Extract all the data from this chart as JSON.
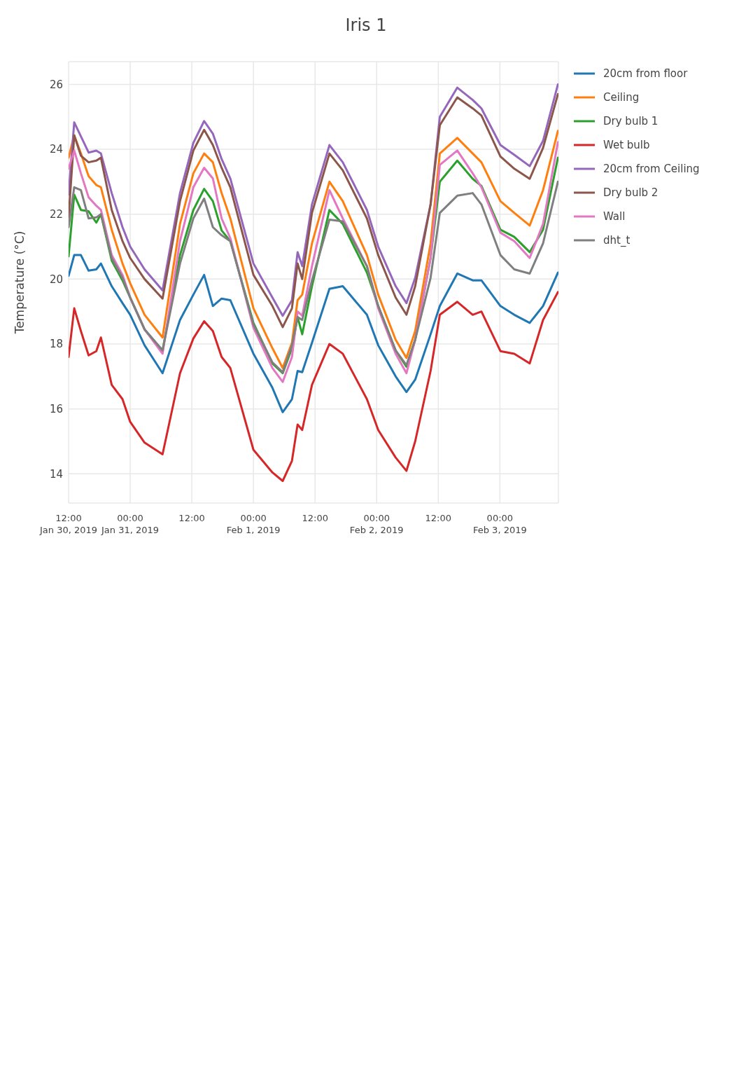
{
  "chart_data": {
    "type": "line",
    "title": "Iris 1",
    "ylabel": "Temperature (°C)",
    "x": [
      "2019-01-30T12:00",
      "2019-01-30T13:06",
      "2019-01-30T14:24",
      "2019-01-30T15:54",
      "2019-01-30T17:24",
      "2019-01-30T18:18",
      "2019-01-30T20:24",
      "2019-01-30T22:30",
      "2019-01-31T00:00",
      "2019-01-31T02:48",
      "2019-01-31T06:18",
      "2019-01-31T09:42",
      "2019-01-31T12:18",
      "2019-01-31T14:24",
      "2019-01-31T16:06",
      "2019-01-31T17:48",
      "2019-01-31T19:30",
      "2019-02-01T00:00",
      "2019-02-01T03:42",
      "2019-02-01T05:42",
      "2019-02-01T07:30",
      "2019-02-01T08:36",
      "2019-02-01T09:30",
      "2019-02-01T11:24",
      "2019-02-01T14:48",
      "2019-02-01T17:24",
      "2019-02-01T22:06",
      "2019-02-02T00:18",
      "2019-02-02T03:42",
      "2019-02-02T05:48",
      "2019-02-02T07:30",
      "2019-02-02T10:30",
      "2019-02-02T12:18",
      "2019-02-02T15:42",
      "2019-02-02T18:42",
      "2019-02-02T20:24",
      "2019-02-03T00:06",
      "2019-02-03T02:48",
      "2019-02-03T05:48",
      "2019-02-03T08:24",
      "2019-02-03T11:18"
    ],
    "series": [
      {
        "name": "20cm from floor",
        "color": "#1f77b4",
        "values": [
          20.1,
          20.74,
          20.74,
          20.26,
          20.3,
          20.48,
          19.78,
          19.26,
          18.9,
          17.96,
          17.1,
          18.74,
          19.52,
          20.13,
          19.17,
          19.4,
          19.35,
          17.7,
          16.65,
          15.9,
          16.3,
          17.17,
          17.13,
          18.04,
          19.7,
          19.78,
          18.9,
          17.96,
          17.0,
          16.52,
          16.9,
          18.3,
          19.17,
          20.17,
          19.96,
          19.96,
          19.17,
          18.9,
          18.65,
          19.17,
          20.2
        ]
      },
      {
        "name": "Ceiling",
        "color": "#ff7f0e",
        "values": [
          23.74,
          24.43,
          23.87,
          23.17,
          22.9,
          22.83,
          21.52,
          20.48,
          19.87,
          18.9,
          18.2,
          21.7,
          23.26,
          23.87,
          23.6,
          22.65,
          21.87,
          19.1,
          17.87,
          17.26,
          18.04,
          19.35,
          19.52,
          21.1,
          23.0,
          22.4,
          20.74,
          19.52,
          18.13,
          17.57,
          18.4,
          21.1,
          23.87,
          24.35,
          23.87,
          23.6,
          22.4,
          22.04,
          21.65,
          22.74,
          24.57
        ]
      },
      {
        "name": "Dry bulb 1",
        "color": "#2ca02c",
        "values": [
          20.7,
          22.6,
          22.13,
          22.09,
          21.74,
          22.0,
          20.57,
          19.96,
          19.43,
          18.45,
          17.8,
          20.74,
          22.13,
          22.78,
          22.4,
          21.5,
          21.17,
          18.65,
          17.4,
          17.1,
          17.87,
          18.83,
          18.3,
          19.78,
          22.13,
          21.7,
          20.2,
          19.17,
          17.8,
          17.3,
          18.13,
          20.65,
          23.0,
          23.65,
          23.09,
          22.87,
          21.52,
          21.3,
          20.83,
          21.52,
          23.74
        ]
      },
      {
        "name": "Wet bulb",
        "color": "#d62728",
        "values": [
          17.6,
          19.1,
          18.4,
          17.65,
          17.78,
          18.2,
          16.74,
          16.3,
          15.6,
          14.96,
          14.6,
          17.1,
          18.17,
          18.7,
          18.4,
          17.6,
          17.26,
          14.74,
          14.04,
          13.78,
          14.4,
          15.52,
          15.35,
          16.74,
          18.0,
          17.7,
          16.3,
          15.35,
          14.5,
          14.09,
          15.0,
          17.17,
          18.9,
          19.3,
          18.9,
          19.0,
          17.78,
          17.7,
          17.4,
          18.74,
          19.6
        ]
      },
      {
        "name": "20cm from Ceiling",
        "color": "#9467bd",
        "values": [
          22.6,
          24.83,
          24.4,
          23.9,
          23.96,
          23.87,
          22.65,
          21.6,
          21.0,
          20.3,
          19.65,
          22.65,
          24.2,
          24.87,
          24.48,
          23.7,
          23.1,
          20.48,
          19.43,
          18.87,
          19.35,
          20.83,
          20.4,
          22.3,
          24.13,
          23.6,
          22.13,
          21.0,
          19.78,
          19.26,
          20.04,
          22.3,
          25.0,
          25.9,
          25.52,
          25.26,
          24.13,
          23.83,
          23.48,
          24.26,
          26.0
        ]
      },
      {
        "name": "Dry bulb 2",
        "color": "#8c564b",
        "values": [
          21.9,
          24.43,
          23.8,
          23.6,
          23.65,
          23.74,
          22.13,
          21.17,
          20.65,
          20.0,
          19.4,
          22.4,
          23.96,
          24.6,
          24.13,
          23.43,
          22.83,
          20.13,
          19.17,
          18.52,
          19.1,
          20.48,
          20.0,
          22.04,
          23.87,
          23.35,
          21.87,
          20.74,
          19.43,
          18.9,
          19.78,
          22.3,
          24.74,
          25.6,
          25.26,
          25.04,
          23.78,
          23.4,
          23.09,
          24.04,
          25.7
        ]
      },
      {
        "name": "Wall",
        "color": "#e377c2",
        "values": [
          23.4,
          23.96,
          23.26,
          22.52,
          22.26,
          22.13,
          20.74,
          20.13,
          19.43,
          18.45,
          17.7,
          21.17,
          22.83,
          23.43,
          23.1,
          21.87,
          21.26,
          18.5,
          17.26,
          16.83,
          17.6,
          19.0,
          18.87,
          20.4,
          22.74,
          21.87,
          20.4,
          19.1,
          17.7,
          17.1,
          18.13,
          20.65,
          23.52,
          23.96,
          23.26,
          22.83,
          21.43,
          21.17,
          20.65,
          21.7,
          24.22
        ]
      },
      {
        "name": "dht_t",
        "color": "#7f7f7f",
        "values": [
          21.6,
          22.83,
          22.74,
          21.87,
          21.9,
          22.0,
          20.65,
          20.04,
          19.43,
          18.45,
          17.8,
          20.48,
          21.87,
          22.48,
          21.6,
          21.35,
          21.17,
          18.6,
          17.43,
          17.13,
          17.96,
          18.83,
          18.74,
          19.96,
          21.83,
          21.78,
          20.4,
          19.17,
          17.8,
          17.35,
          18.13,
          20.04,
          22.04,
          22.57,
          22.65,
          22.3,
          20.74,
          20.3,
          20.17,
          21.1,
          23.0
        ]
      }
    ],
    "xlim": [
      "2019-01-30T12:00",
      "2019-02-03T11:24"
    ],
    "xticks": [
      {
        "value": "2019-01-30T12:00",
        "label": "12:00\nJan 30, 2019"
      },
      {
        "value": "2019-01-31T00:00",
        "label": "00:00\nJan 31, 2019"
      },
      {
        "value": "2019-01-31T12:00",
        "label": "12:00"
      },
      {
        "value": "2019-02-01T00:00",
        "label": "00:00\nFeb 1, 2019"
      },
      {
        "value": "2019-02-01T12:00",
        "label": "12:00"
      },
      {
        "value": "2019-02-02T00:00",
        "label": "00:00\nFeb 2, 2019"
      },
      {
        "value": "2019-02-02T12:00",
        "label": "12:00"
      },
      {
        "value": "2019-02-03T00:00",
        "label": "00:00\nFeb 3, 2019"
      }
    ],
    "ylim": [
      13.1,
      26.7
    ],
    "yticks": [
      14,
      16,
      18,
      20,
      22,
      24,
      26
    ],
    "grid": true,
    "legend": "right"
  }
}
